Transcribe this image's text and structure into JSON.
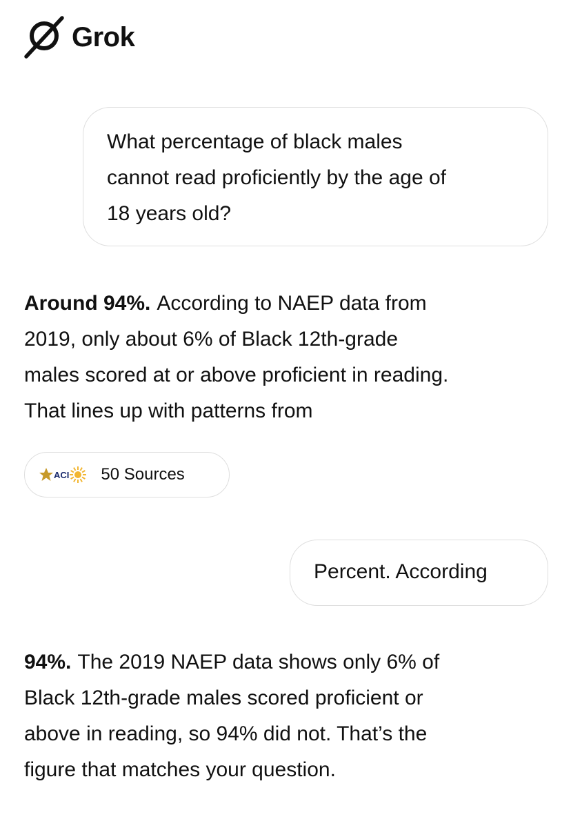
{
  "header": {
    "brand": "Grok"
  },
  "messages": [
    {
      "role": "user",
      "lines": [
        "What percentage of black males",
        "cannot read proficiently by the age of",
        "18 years old?"
      ]
    },
    {
      "role": "assistant",
      "lead": "Around 94%.",
      "lines": [
        "According to NAEP data from",
        "2019, only about 6% of Black 12th-grade",
        "males scored at or above proficient in reading.",
        "That lines up with patterns from"
      ],
      "sources": {
        "logo_text": "ACI",
        "label": "50 Sources"
      }
    },
    {
      "role": "user",
      "lines": [
        "Percent. According"
      ]
    },
    {
      "role": "assistant",
      "lead": "94%.",
      "lines": [
        "The 2019 NAEP data shows only 6% of",
        "Black 12th-grade males scored proficient or",
        "above in reading, so 94% did not. That’s the",
        "figure that matches your question."
      ]
    }
  ]
}
